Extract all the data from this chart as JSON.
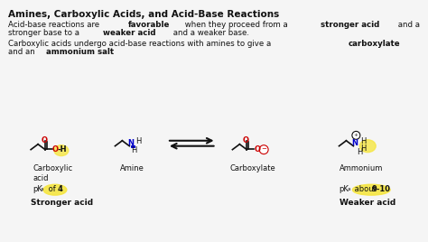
{
  "bg_color": "#f5f5f5",
  "title": "Amines, Carboxylic Acids, and Acid-Base Reactions",
  "line1_parts": [
    {
      "text": "Acid-base reactions are ",
      "bold": false
    },
    {
      "text": "favorable",
      "bold": true
    },
    {
      "text": " when they proceed from a ",
      "bold": false
    },
    {
      "text": "stronger acid",
      "bold": true
    },
    {
      "text": " and a",
      "bold": false
    }
  ],
  "line2_parts": [
    {
      "text": "stronger base to a ",
      "bold": false
    },
    {
      "text": "weaker acid",
      "bold": true
    },
    {
      "text": " and a weaker base.",
      "bold": false
    }
  ],
  "line3_parts": [
    {
      "text": "Carboxylic acids undergo acid-base reactions with amines to give a ",
      "bold": false
    },
    {
      "text": "carboxylate",
      "bold": true
    }
  ],
  "line4_parts": [
    {
      "text": "and an ",
      "bold": false
    },
    {
      "text": "ammonium salt",
      "bold": true
    }
  ],
  "label_carboxylic": "Carboxylic\nacid",
  "label_amine": "Amine",
  "label_carboxylate": "Carboxylate",
  "label_ammonium": "Ammonium",
  "pka_left": "pK",
  "pka_left_sub": "a",
  "pka_left_rest": " of ",
  "pka_left_num": "4",
  "pka_right": "pK",
  "pka_right_sub": "a",
  "pka_right_rest": " about ",
  "pka_right_num": "9-10",
  "stronger": "Stronger acid",
  "weaker": "Weaker acid",
  "highlight_color": "#f5e642",
  "red": "#cc0000",
  "blue": "#0000cc",
  "black": "#111111",
  "orange": "#cc6600"
}
